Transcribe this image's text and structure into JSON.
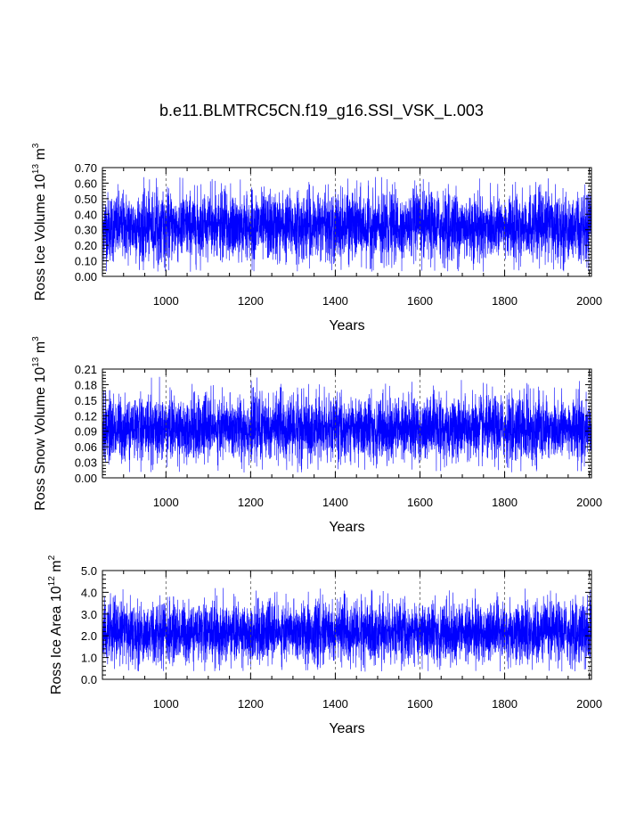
{
  "title": "b.e11.BLMTRC5CN.f19_g16.SSI_VSK_L.003",
  "series_color": "#0000ff",
  "chart_data": [
    {
      "type": "line",
      "title": "b.e11.BLMTRC5CN.f19_g16.SSI_VSK_L.003",
      "xlabel": "Years",
      "ylabel": {
        "prefix": "Ross Ice Volume 10",
        "sup": "13",
        "mid": " m",
        "sup2": "3"
      },
      "xlim": [
        850,
        2005
      ],
      "ylim": [
        0.0,
        0.7
      ],
      "xticks": [
        1000,
        1200,
        1400,
        1600,
        1800,
        2000
      ],
      "yticks": [
        "0.00",
        "0.10",
        "0.20",
        "0.30",
        "0.40",
        "0.50",
        "0.60",
        "0.70"
      ],
      "ytick_values": [
        0.0,
        0.1,
        0.2,
        0.3,
        0.4,
        0.5,
        0.6,
        0.7
      ],
      "grid": "vertical dashed at x ticks",
      "series": [
        {
          "x_start": 850,
          "x_end": 2005,
          "mean": 0.32,
          "typical_min": 0.09,
          "typical_max": 0.55,
          "observed_min": 0.03,
          "observed_max": 0.64
        }
      ]
    },
    {
      "type": "line",
      "xlabel": "Years",
      "ylabel": {
        "prefix": "Ross Snow Volume 10",
        "sup": "13",
        "mid": " m",
        "sup2": "3"
      },
      "xlim": [
        850,
        2005
      ],
      "ylim": [
        0.0,
        0.21
      ],
      "xticks": [
        1000,
        1200,
        1400,
        1600,
        1800,
        2000
      ],
      "yticks": [
        "0.00",
        "0.03",
        "0.06",
        "0.09",
        "0.12",
        "0.15",
        "0.18",
        "0.21"
      ],
      "ytick_values": [
        0.0,
        0.03,
        0.06,
        0.09,
        0.12,
        0.15,
        0.18,
        0.21
      ],
      "grid": "vertical dashed at x ticks",
      "series": [
        {
          "x_start": 850,
          "x_end": 2005,
          "mean": 0.095,
          "typical_min": 0.03,
          "typical_max": 0.16,
          "observed_min": 0.01,
          "observed_max": 0.195
        }
      ]
    },
    {
      "type": "line",
      "xlabel": "Years",
      "ylabel": {
        "prefix": "Ross Ice Area 10",
        "sup": "12",
        "mid": " m",
        "sup2": "2"
      },
      "xlim": [
        850,
        2005
      ],
      "ylim": [
        0.0,
        5.0
      ],
      "xticks": [
        1000,
        1200,
        1400,
        1600,
        1800,
        2000
      ],
      "yticks": [
        "0.0",
        "1.0",
        "2.0",
        "3.0",
        "4.0",
        "5.0"
      ],
      "ytick_values": [
        0.0,
        1.0,
        2.0,
        3.0,
        4.0,
        5.0
      ],
      "grid": "vertical dashed at x ticks",
      "series": [
        {
          "x_start": 850,
          "x_end": 2005,
          "mean": 2.15,
          "typical_min": 0.7,
          "typical_max": 3.6,
          "observed_min": 0.35,
          "observed_max": 4.2
        }
      ]
    }
  ]
}
